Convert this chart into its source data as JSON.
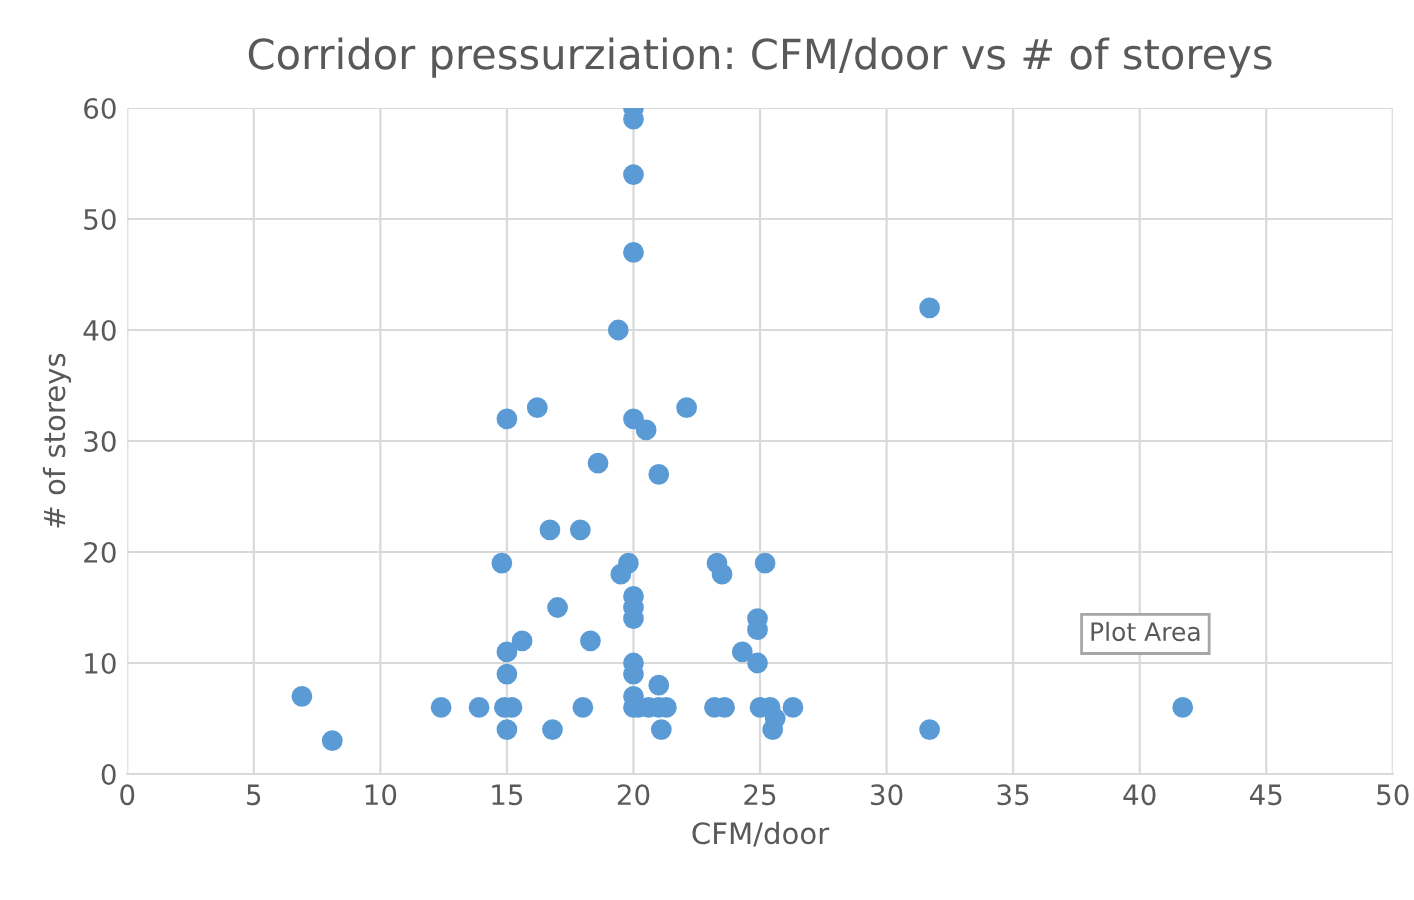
{
  "chart_data": {
    "type": "scatter",
    "title": "Corridor pressurziation: CFM/door vs # of storeys",
    "xlabel": "CFM/door",
    "ylabel": "# of storeys",
    "x": [
      6.9,
      8.1,
      12.4,
      13.9,
      14.9,
      15.2,
      15.0,
      15.0,
      15.0,
      14.8,
      15.0,
      16.2,
      15.6,
      16.8,
      17.0,
      16.7,
      17.9,
      18.3,
      18.0,
      18.6,
      19.4,
      19.5,
      19.8,
      20,
      20,
      20,
      20,
      20,
      20.5,
      21.0,
      22.1,
      20,
      20,
      20,
      20,
      20,
      20,
      20,
      20.2,
      20.6,
      21.0,
      21.3,
      21.0,
      21.1,
      23.3,
      23.5,
      23.2,
      23.6,
      24.3,
      24.9,
      24.9,
      24.9,
      25.0,
      25.2,
      25.4,
      25.5,
      25.6,
      26.3,
      31.7,
      31.7,
      41.7
    ],
    "series": [
      {
        "color": "#5b9bd5",
        "values": [
          7,
          3,
          6,
          6,
          6,
          6,
          4,
          9,
          11,
          19,
          32,
          33,
          12,
          4,
          15,
          22,
          22,
          12,
          6,
          28,
          40,
          18,
          19,
          60,
          59,
          54,
          47,
          32,
          31,
          27,
          33,
          16,
          15,
          14,
          10,
          9,
          7,
          6,
          6,
          6,
          6,
          6,
          8,
          4,
          19,
          18,
          6,
          6,
          11,
          14,
          13,
          10,
          6,
          19,
          6,
          4,
          5,
          6,
          42,
          4,
          6
        ]
      }
    ],
    "xlim": [
      0,
      50
    ],
    "xticks": [
      0,
      5,
      10,
      15,
      20,
      25,
      30,
      35,
      40,
      45,
      50
    ],
    "ylim": [
      0,
      60
    ],
    "yticks": [
      0,
      10,
      20,
      30,
      40,
      50,
      60
    ],
    "grid": true,
    "marker": "circle",
    "annotations": [
      "Plot Area"
    ]
  }
}
